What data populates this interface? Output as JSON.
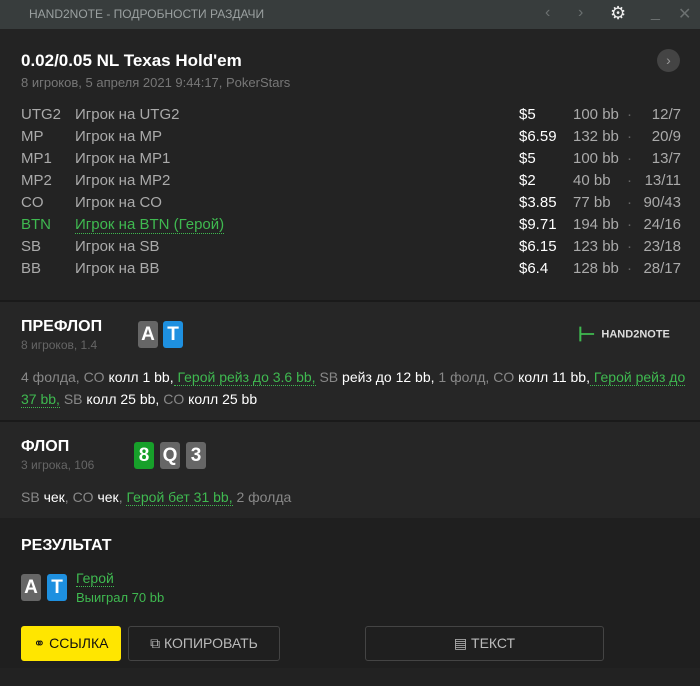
{
  "window": {
    "title": "HAND2NOTE - ПОДРОБНОСТИ РАЗДАЧИ"
  },
  "header": {
    "title": "0.02/0.05 NL Texas Hold'em",
    "subtitle": "8 игроков, 5 апреля 2021 9:44:17, PokerStars"
  },
  "players": [
    {
      "pos": "UTG2",
      "name": "Игрок на UTG2",
      "stack": "$5",
      "bb": "100 bb",
      "stats": "12/7"
    },
    {
      "pos": "MP",
      "name": "Игрок на MP",
      "stack": "$6.59",
      "bb": "132 bb",
      "stats": "20/9"
    },
    {
      "pos": "MP1",
      "name": "Игрок на MP1",
      "stack": "$5",
      "bb": "100 bb",
      "stats": "13/7"
    },
    {
      "pos": "MP2",
      "name": "Игрок на MP2",
      "stack": "$2",
      "bb": "40 bb",
      "stats": "13/11"
    },
    {
      "pos": "CO",
      "name": "Игрок на CO",
      "stack": "$3.85",
      "bb": "77 bb",
      "stats": "90/43"
    },
    {
      "pos": "BTN",
      "name": "Игрок на BTN (Герой)",
      "stack": "$9.71",
      "bb": "194 bb",
      "stats": "24/16",
      "hero": true
    },
    {
      "pos": "SB",
      "name": "Игрок на SB",
      "stack": "$6.15",
      "bb": "123 bb",
      "stats": "23/18"
    },
    {
      "pos": "BB",
      "name": "Игрок на BB",
      "stack": "$6.4",
      "bb": "128 bb",
      "stats": "28/17"
    }
  ],
  "preflop": {
    "title": "ПРЕФЛОП",
    "sub": "8 игроков, 1.4",
    "cards": [
      "A",
      "T"
    ],
    "logo": "HAND2NOTE",
    "a": [
      "4 фолда, CO ",
      "колл 1 bb,",
      " Герой рейз до 3.6 bb,",
      " SB ",
      "рейз до 12 bb,",
      " 1 фолд, CO ",
      "колл 11 bb,",
      " Герой рейз до 37 bb,",
      " SB ",
      "колл 25 bb,",
      " CO ",
      "колл 25 bb"
    ]
  },
  "flop": {
    "title": "ФЛОП",
    "sub": "3 игрока, 106",
    "cards": [
      "8",
      "Q",
      "3"
    ],
    "a": [
      "SB ",
      "чек",
      ", CO ",
      "чек",
      ", ",
      "Герой бет 31 bb,",
      " 2 фолда"
    ]
  },
  "result": {
    "title": "РЕЗУЛЬТАТ",
    "cards": [
      "A",
      "T"
    ],
    "winner": "Герой",
    "won": "Выиграл 70 bb"
  },
  "buttons": {
    "link": "ССЫЛКА",
    "copy": "КОПИРОВАТЬ",
    "text": "ТЕКСТ"
  },
  "colors": {
    "hero": "#3fb950",
    "link_button": "#ffe600",
    "card_blue": "#1e90e0",
    "card_green": "#17a02a"
  }
}
